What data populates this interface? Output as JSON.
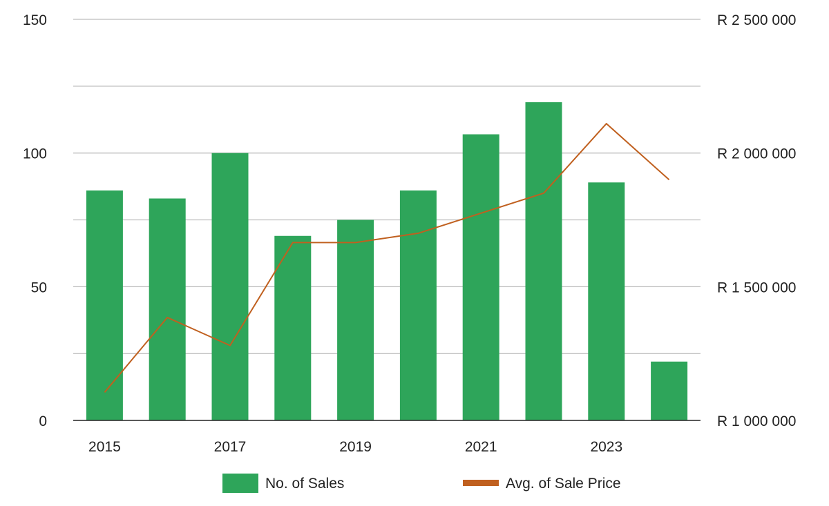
{
  "chart_data": {
    "type": "bar",
    "categories": [
      "2015",
      "2016",
      "2017",
      "2018",
      "2019",
      "2020",
      "2021",
      "2022",
      "2023",
      "2024"
    ],
    "x_tick_labels": [
      "2015",
      "2017",
      "2019",
      "2021",
      "2023"
    ],
    "series": [
      {
        "name": "No. of Sales",
        "type": "bar",
        "axis": "left",
        "values": [
          86,
          83,
          100,
          69,
          75,
          86,
          107,
          119,
          89,
          22
        ]
      },
      {
        "name": "Avg. of Sale Price",
        "type": "line",
        "axis": "right",
        "values": [
          1105000,
          1385000,
          1280000,
          1665000,
          1665000,
          1700000,
          1775000,
          1850000,
          2110000,
          1900000
        ]
      }
    ],
    "y_left": {
      "ylim": [
        0,
        150
      ],
      "ticks": [
        0,
        50,
        100,
        150
      ],
      "tick_labels": [
        "0",
        "50",
        "100",
        "150"
      ]
    },
    "y_right": {
      "ylim": [
        1000000,
        2500000
      ],
      "ticks": [
        1000000,
        1500000,
        2000000,
        2500000
      ],
      "tick_labels": [
        "R 1 000 000",
        "R 1 500 000",
        "R 2 000 000",
        "R 2 500 000"
      ]
    },
    "gridlines": [
      0,
      25,
      50,
      75,
      100,
      125,
      150
    ],
    "grid": true,
    "legend_position": "bottom",
    "title": "",
    "xlabel": "",
    "ylabel": "",
    "colors": {
      "bar": "#2ea55a",
      "line": "#c0601f",
      "grid": "#bdbdbd",
      "axis": "#222222"
    }
  }
}
